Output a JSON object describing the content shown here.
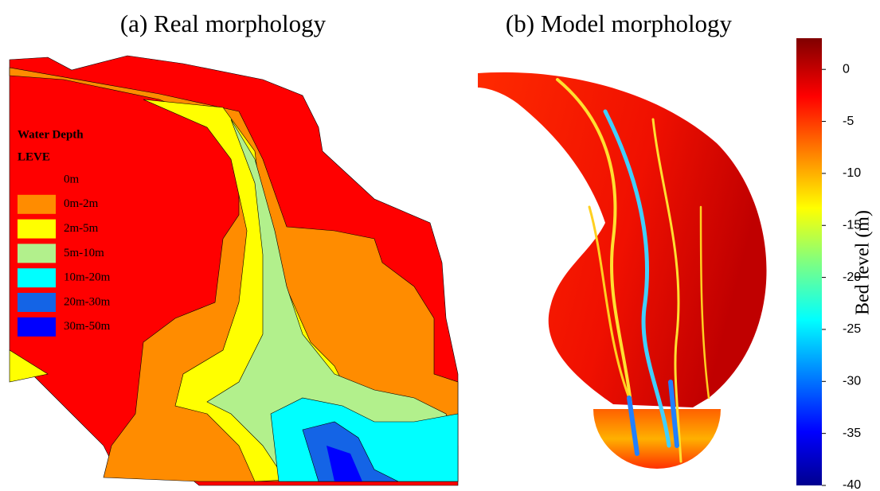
{
  "panels": [
    {
      "title": "(a) Real morphology"
    },
    {
      "title": "(b) Model morphology"
    }
  ],
  "legend": {
    "title": "Water Depth",
    "subtitle": "LEVE",
    "items": [
      {
        "label": "0m",
        "color": "#ff0000"
      },
      {
        "label": "0m-2m",
        "color": "#ff8c00"
      },
      {
        "label": "2m-5m",
        "color": "#ffff00"
      },
      {
        "label": "5m-10m",
        "color": "#b2f08c"
      },
      {
        "label": "10m-20m",
        "color": "#00ffff"
      },
      {
        "label": "20m-30m",
        "color": "#1464e6"
      },
      {
        "label": "30m-50m",
        "color": "#0000ff"
      }
    ]
  },
  "colorbar": {
    "label": "Bed level (m)",
    "lim": [
      -40,
      3
    ],
    "ticks": [
      0,
      -5,
      -10,
      -15,
      -20,
      -25,
      -30,
      -35,
      -40
    ]
  }
}
